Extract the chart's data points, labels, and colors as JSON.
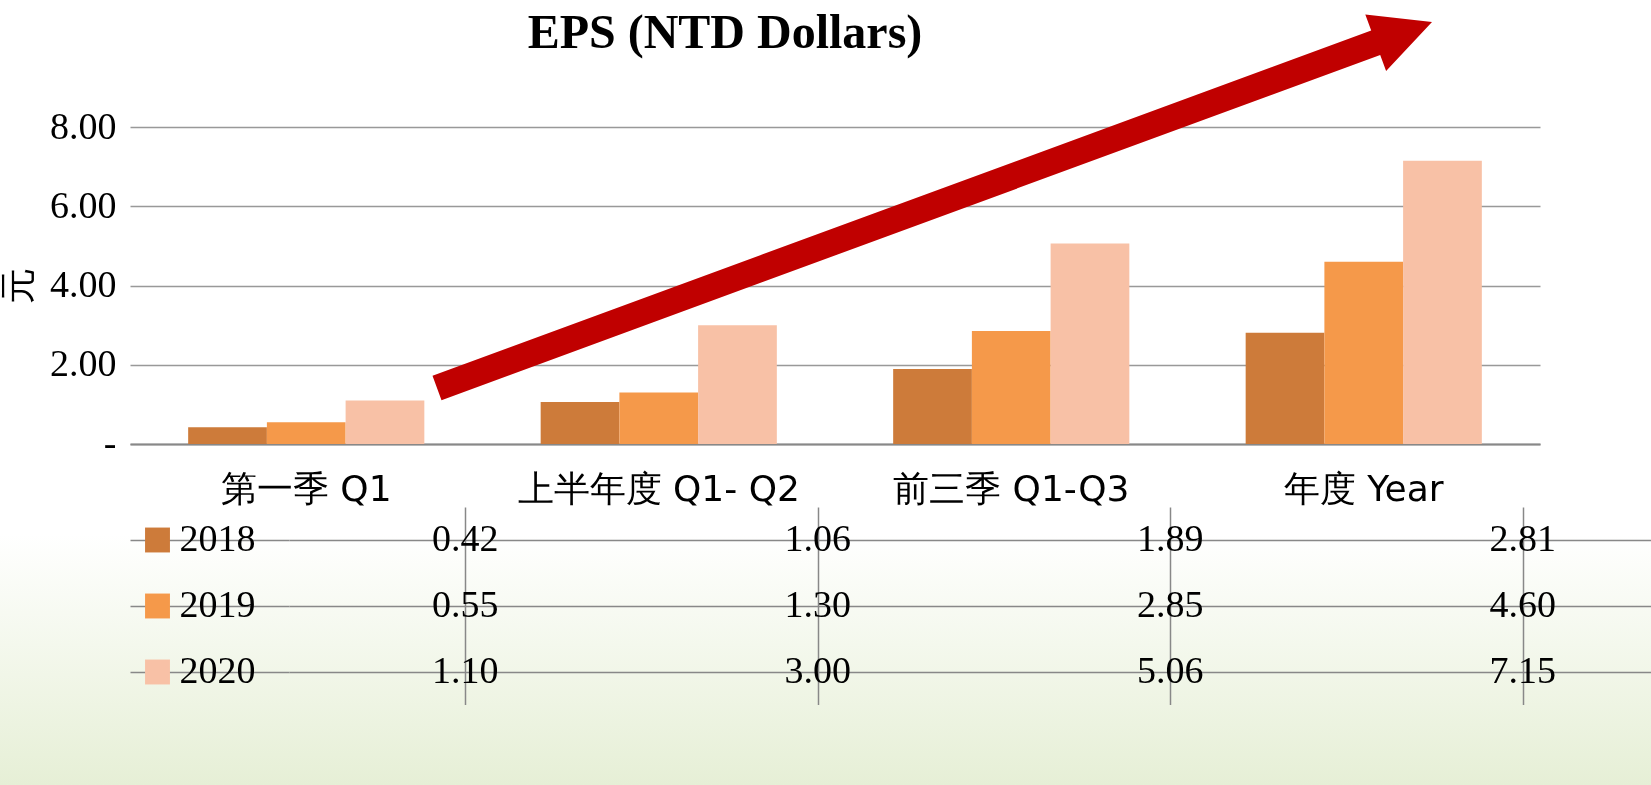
{
  "chart_data": {
    "type": "bar",
    "title": "EPS  (NTD Dollars)",
    "ylabel": "元",
    "categories": [
      "第一季  Q1",
      "上半年度 Q1- Q2",
      "前三季 Q1-Q3",
      "年度  Year"
    ],
    "series": [
      {
        "name": "2018",
        "color": "#cd7b3a",
        "values": [
          0.42,
          1.06,
          1.89,
          2.81
        ],
        "value_labels": [
          "0.42",
          "1.06",
          "1.89",
          "2.81"
        ]
      },
      {
        "name": "2019",
        "color": "#f5994a",
        "values": [
          0.55,
          1.3,
          2.85,
          4.6
        ],
        "value_labels": [
          "0.55",
          "1.30",
          "2.85",
          "4.60"
        ]
      },
      {
        "name": "2020",
        "color": "#f8c1a6",
        "values": [
          1.1,
          3.0,
          5.06,
          7.15
        ],
        "value_labels": [
          "1.10",
          "3.00",
          "5.06",
          "7.15"
        ]
      }
    ],
    "ylim": [
      0,
      8
    ],
    "yticks": [
      {
        "value": 0,
        "label": "-"
      },
      {
        "value": 2,
        "label": "2.00"
      },
      {
        "value": 4,
        "label": "4.00"
      },
      {
        "value": 6,
        "label": "6.00"
      },
      {
        "value": 8,
        "label": "8.00"
      }
    ],
    "grid": "y",
    "legend": "bottom left"
  }
}
